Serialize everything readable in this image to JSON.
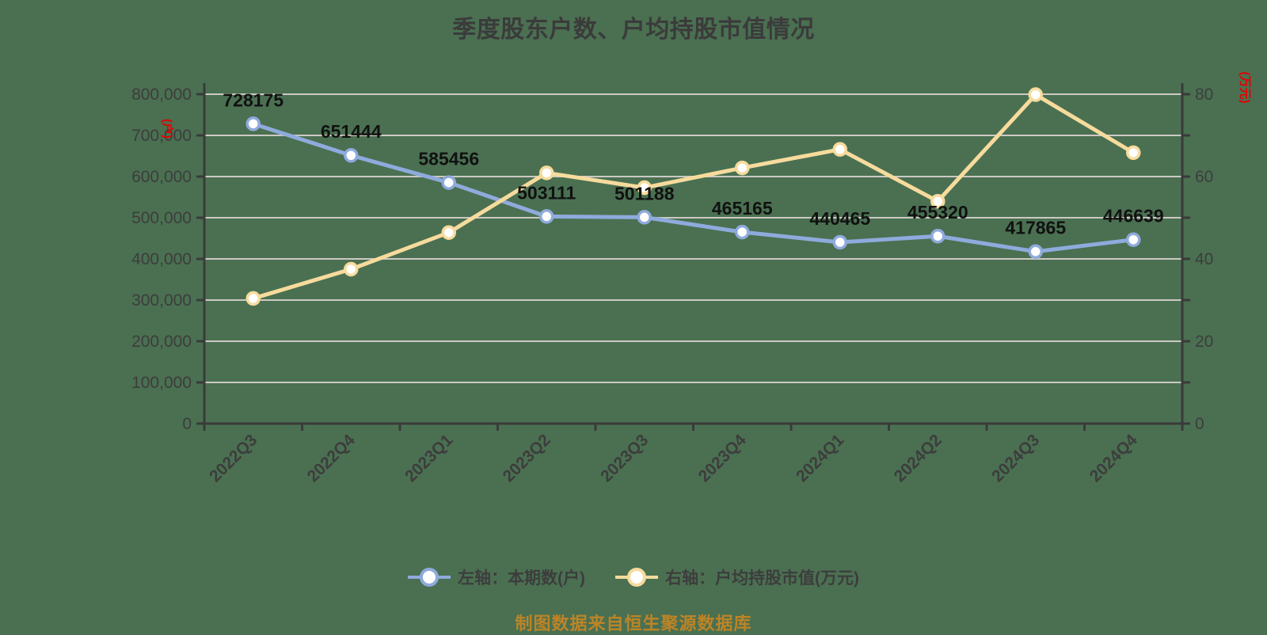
{
  "page": {
    "background_color": "#4a7051",
    "title": "季度股东户数、户均持股市值情况",
    "title_color": "#3b3b3b",
    "footer_note": "制图数据来自恒生聚源数据库",
    "footer_color": "#bd8426"
  },
  "axis_units": {
    "left": "(户)",
    "right": "(万元)",
    "unit_color": "#e60000"
  },
  "legend": {
    "items": [
      {
        "label": "左轴：本期数(户)",
        "color": "#8faadc"
      },
      {
        "label": "右轴：户均持股市值(万元)",
        "color": "#f7db9d"
      }
    ],
    "text_color": "#3d3d3d"
  },
  "colors": {
    "grid_line": "#ccc9c3",
    "axis_line": "#3a3a3a",
    "tick_text": "#3d3d3d",
    "data_label_text": "#111111",
    "marker_fill": "#ffffff"
  },
  "chart_data": {
    "type": "line",
    "title": "季度股东户数、户均持股市值情况",
    "grid": true,
    "legend_position": "bottom",
    "categories": [
      "2022Q3",
      "2022Q4",
      "2023Q1",
      "2023Q2",
      "2023Q3",
      "2023Q4",
      "2024Q1",
      "2024Q2",
      "2024Q3",
      "2024Q4"
    ],
    "series": [
      {
        "name": "左轴：本期数(户)",
        "axis": "left",
        "color": "#8faadc",
        "values": [
          728175,
          651444,
          585456,
          503111,
          501188,
          465165,
          440465,
          455320,
          417865,
          446639
        ],
        "data_labels": [
          "728175",
          "651444",
          "585456",
          "503111",
          "501188",
          "465165",
          "440465",
          "455320",
          "417865",
          "446639"
        ]
      },
      {
        "name": "右轴：户均持股市值(万元)",
        "axis": "right",
        "color": "#f7db9d",
        "values": [
          30.4,
          37.5,
          46.4,
          60.9,
          57.3,
          62.1,
          66.6,
          54.0,
          79.9,
          65.8
        ],
        "data_labels": []
      }
    ],
    "left_axis": {
      "unit": "(户)",
      "min": 0,
      "max": 800000,
      "step": 100000,
      "tick_labels": [
        "0",
        "100,000",
        "200,000",
        "300,000",
        "400,000",
        "500,000",
        "600,000",
        "700,000",
        "800,000"
      ]
    },
    "right_axis": {
      "unit": "(万元)",
      "min": 0,
      "max": 80,
      "step": 20,
      "tick_labels": [
        "0",
        "20",
        "40",
        "60",
        "80"
      ]
    }
  }
}
